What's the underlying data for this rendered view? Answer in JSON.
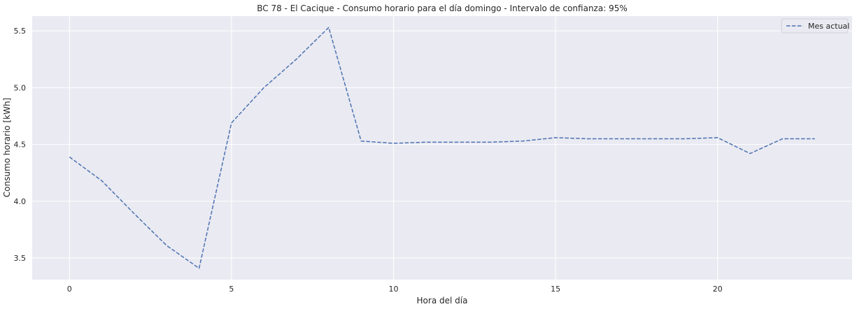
{
  "chart_data": {
    "type": "line",
    "title": "BC 78 - El Cacique - Consumo horario para el día domingo - Intervalo de confianza: 95%",
    "xlabel": "Hora del día",
    "ylabel": "Consumo horario [kWh]",
    "xlim": [
      -1.15,
      24.15
    ],
    "ylim": [
      3.31,
      5.63
    ],
    "x_ticks": [
      0,
      5,
      10,
      15,
      20
    ],
    "y_ticks": [
      3.5,
      4.0,
      4.5,
      5.0,
      5.5
    ],
    "x_tick_labels": [
      "0",
      "5",
      "10",
      "15",
      "20"
    ],
    "y_tick_labels": [
      "3.5",
      "4.0",
      "4.5",
      "5.0",
      "5.5"
    ],
    "grid": true,
    "legend_position": "top-right",
    "background_color": "#eaeaf2",
    "grid_color": "#ffffff",
    "series": [
      {
        "name": "Mes actual",
        "color": "#4c72b0",
        "line_style": "dashed",
        "x": [
          0,
          1,
          2,
          3,
          4,
          5,
          6,
          7,
          8,
          9,
          10,
          11,
          12,
          13,
          14,
          15,
          16,
          17,
          18,
          19,
          20,
          21,
          22,
          23
        ],
        "y": [
          4.39,
          4.18,
          3.89,
          3.61,
          3.41,
          4.69,
          5.0,
          5.25,
          5.53,
          4.53,
          4.51,
          4.52,
          4.52,
          4.52,
          4.53,
          4.56,
          4.55,
          4.55,
          4.55,
          4.55,
          4.56,
          4.42,
          4.55,
          4.55
        ]
      }
    ]
  }
}
